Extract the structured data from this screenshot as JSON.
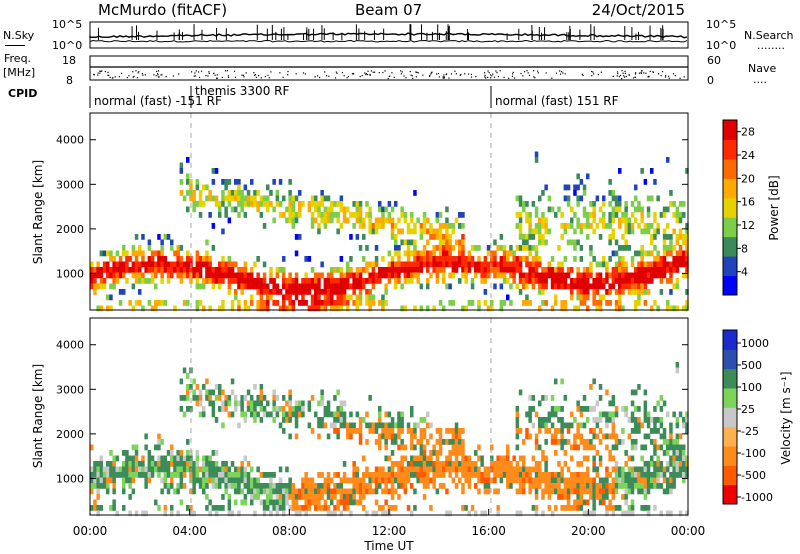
{
  "header": {
    "station": "McMurdo (fitACF)",
    "beam": "Beam 07",
    "date": "24/Oct/2015"
  },
  "left_labels": {
    "nsky": "N.Sky",
    "freq": "Freq.",
    "freq_unit": "[MHz]",
    "cpid": "CPID"
  },
  "right_labels": {
    "nsearch": "N.Search",
    "nsearch_dots": "........",
    "nave": "Nave",
    "nave_dots": "...."
  },
  "noise_panel": {
    "left_ticks": [
      "10^5",
      "10^0"
    ],
    "right_ticks": [
      "10^5",
      "10^0"
    ]
  },
  "freq_panel": {
    "left_ticks": [
      "18",
      "8"
    ],
    "right_ticks": [
      "60",
      "0"
    ]
  },
  "cpid_segments": [
    {
      "label": "normal (fast) -151 RF",
      "start_hour": 0,
      "end_hour": 4
    },
    {
      "label": "themis 3300 RF",
      "start_hour": 4,
      "end_hour": 16
    },
    {
      "label": "normal (fast) 151 RF",
      "start_hour": 16,
      "end_hour": 24
    }
  ],
  "colors": {
    "power": [
      "#0000ff",
      "#2244bb",
      "#3a8a5a",
      "#7ccd4a",
      "#e6d200",
      "#ffaa00",
      "#ff6a00",
      "#ff2a00",
      "#e00000"
    ],
    "velocity": [
      "#ee0000",
      "#ff5a00",
      "#ff8c1a",
      "#ffb050",
      "#c8c8c8",
      "#7cd45a",
      "#3c8c5a",
      "#2a4fb0",
      "#1a2acc"
    ]
  },
  "chart_data": [
    {
      "type": "heatmap",
      "name": "Power",
      "ylabel": "Slant Range [km]",
      "ylim": [
        180,
        4600
      ],
      "y_ticks": [
        1000,
        2000,
        3000,
        4000
      ],
      "x_range_hours": [
        0,
        24
      ],
      "colorbar_label": "Power [dB]",
      "colorbar_ticks": [
        "4",
        "8",
        "12",
        "16",
        "20",
        "24",
        "28"
      ],
      "colorbar_range": [
        0,
        30
      ]
    },
    {
      "type": "heatmap",
      "name": "Velocity",
      "ylabel": "Slant Range [km]",
      "ylim": [
        180,
        4600
      ],
      "y_ticks": [
        1000,
        2000,
        3000,
        4000
      ],
      "x_range_hours": [
        0,
        24
      ],
      "xlabel": "Time UT",
      "x_ticks": [
        "00:00",
        "04:00",
        "08:00",
        "12:00",
        "16:00",
        "20:00",
        "00:00"
      ],
      "colorbar_label": "Velocity [m s⁻¹]",
      "colorbar_ticks": [
        "1000",
        "500",
        "100",
        "25",
        "-25",
        "-100",
        "-500",
        "-1000"
      ]
    }
  ]
}
